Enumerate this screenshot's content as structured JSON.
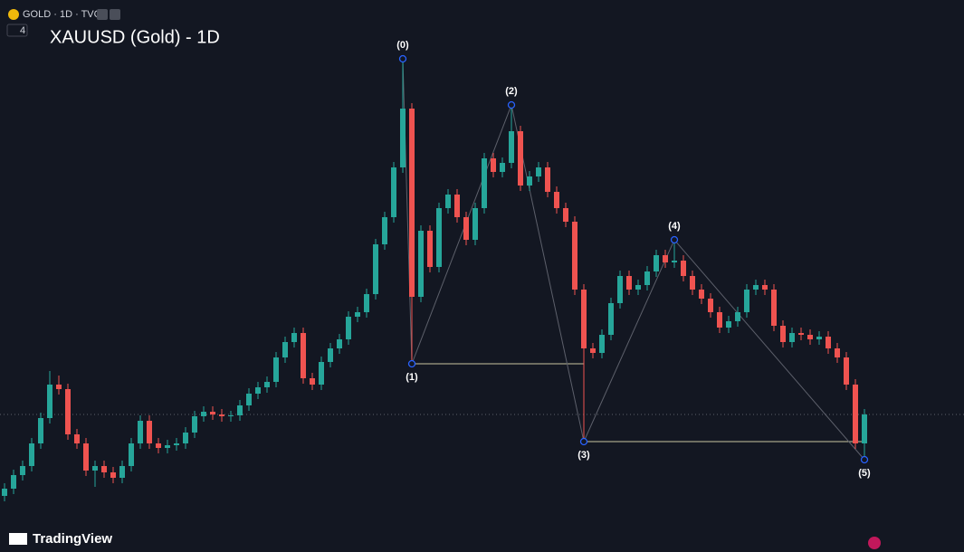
{
  "chart_data": {
    "type": "candlestick",
    "header": "GOLD · 1D · TVC",
    "indicator_count": "4",
    "title": "XAUUSD (Gold) - 1D",
    "brand": "TradingView",
    "ylim": [
      0,
      610
    ],
    "up_color": "#26a69a",
    "down_color": "#ef5350",
    "candles": [
      [
        62,
        76,
        56,
        70
      ],
      [
        70,
        91,
        64,
        85
      ],
      [
        85,
        101,
        79,
        95
      ],
      [
        95,
        126,
        89,
        120
      ],
      [
        120,
        154,
        114,
        148
      ],
      [
        148,
        200,
        142,
        185
      ],
      [
        185,
        195,
        174,
        180
      ],
      [
        180,
        186,
        124,
        130
      ],
      [
        130,
        136,
        114,
        120
      ],
      [
        120,
        126,
        84,
        90
      ],
      [
        90,
        101,
        72,
        95
      ],
      [
        95,
        101,
        82,
        88
      ],
      [
        88,
        94,
        76,
        82
      ],
      [
        82,
        101,
        76,
        95
      ],
      [
        95,
        126,
        89,
        120
      ],
      [
        120,
        151,
        114,
        145
      ],
      [
        145,
        151,
        114,
        120
      ],
      [
        120,
        126,
        109,
        115
      ],
      [
        115,
        124,
        109,
        118
      ],
      [
        118,
        126,
        112,
        120
      ],
      [
        120,
        138,
        114,
        132
      ],
      [
        132,
        156,
        126,
        150
      ],
      [
        150,
        161,
        144,
        155
      ],
      [
        155,
        161,
        146,
        152
      ],
      [
        152,
        158,
        144,
        150
      ],
      [
        150,
        156,
        144,
        151
      ],
      [
        151,
        168,
        145,
        162
      ],
      [
        162,
        181,
        156,
        175
      ],
      [
        175,
        188,
        169,
        182
      ],
      [
        182,
        194,
        176,
        188
      ],
      [
        188,
        221,
        182,
        215
      ],
      [
        215,
        238,
        209,
        232
      ],
      [
        232,
        248,
        226,
        242
      ],
      [
        242,
        248,
        186,
        192
      ],
      [
        192,
        198,
        179,
        185
      ],
      [
        185,
        216,
        179,
        210
      ],
      [
        210,
        231,
        204,
        225
      ],
      [
        225,
        241,
        219,
        235
      ],
      [
        235,
        266,
        229,
        260
      ],
      [
        260,
        271,
        254,
        265
      ],
      [
        265,
        291,
        259,
        285
      ],
      [
        285,
        346,
        279,
        340
      ],
      [
        340,
        376,
        334,
        370
      ],
      [
        370,
        431,
        364,
        425
      ],
      [
        425,
        545,
        419,
        490
      ],
      [
        490,
        496,
        208,
        282
      ],
      [
        282,
        361,
        276,
        355
      ],
      [
        355,
        361,
        309,
        315
      ],
      [
        315,
        386,
        309,
        380
      ],
      [
        380,
        401,
        374,
        395
      ],
      [
        395,
        401,
        364,
        370
      ],
      [
        370,
        376,
        339,
        345
      ],
      [
        345,
        386,
        339,
        380
      ],
      [
        380,
        441,
        374,
        435
      ],
      [
        435,
        441,
        414,
        420
      ],
      [
        420,
        436,
        414,
        430
      ],
      [
        430,
        494,
        424,
        465
      ],
      [
        465,
        471,
        399,
        405
      ],
      [
        405,
        421,
        399,
        415
      ],
      [
        415,
        431,
        409,
        425
      ],
      [
        425,
        431,
        392,
        398
      ],
      [
        398,
        404,
        374,
        380
      ],
      [
        380,
        386,
        359,
        365
      ],
      [
        365,
        371,
        284,
        290
      ],
      [
        290,
        296,
        122,
        225
      ],
      [
        225,
        231,
        214,
        220
      ],
      [
        220,
        246,
        214,
        240
      ],
      [
        240,
        281,
        234,
        275
      ],
      [
        275,
        311,
        269,
        305
      ],
      [
        305,
        311,
        284,
        290
      ],
      [
        290,
        301,
        284,
        295
      ],
      [
        295,
        316,
        289,
        310
      ],
      [
        310,
        334,
        304,
        328
      ],
      [
        328,
        334,
        314,
        320
      ],
      [
        320,
        345,
        314,
        322
      ],
      [
        322,
        328,
        299,
        305
      ],
      [
        305,
        311,
        284,
        290
      ],
      [
        290,
        296,
        274,
        280
      ],
      [
        280,
        286,
        259,
        265
      ],
      [
        265,
        271,
        242,
        248
      ],
      [
        248,
        261,
        242,
        255
      ],
      [
        255,
        271,
        249,
        265
      ],
      [
        265,
        296,
        259,
        290
      ],
      [
        290,
        301,
        284,
        295
      ],
      [
        295,
        301,
        284,
        290
      ],
      [
        290,
        296,
        244,
        250
      ],
      [
        250,
        256,
        226,
        232
      ],
      [
        232,
        248,
        226,
        242
      ],
      [
        242,
        248,
        234,
        240
      ],
      [
        240,
        246,
        229,
        235
      ],
      [
        235,
        244,
        229,
        238
      ],
      [
        238,
        244,
        219,
        225
      ],
      [
        225,
        231,
        209,
        215
      ],
      [
        215,
        221,
        179,
        185
      ],
      [
        185,
        191,
        114,
        120
      ],
      [
        120,
        158,
        102,
        152
      ]
    ],
    "points": [
      {
        "label": "(0)",
        "index": 44,
        "value": 545
      },
      {
        "label": "(1)",
        "index": 45,
        "value": 208
      },
      {
        "label": "(2)",
        "index": 56,
        "value": 494
      },
      {
        "label": "(3)",
        "index": 64,
        "value": 122
      },
      {
        "label": "(4)",
        "index": 74,
        "value": 345
      },
      {
        "label": "(5)",
        "index": 95,
        "value": 102
      }
    ]
  }
}
